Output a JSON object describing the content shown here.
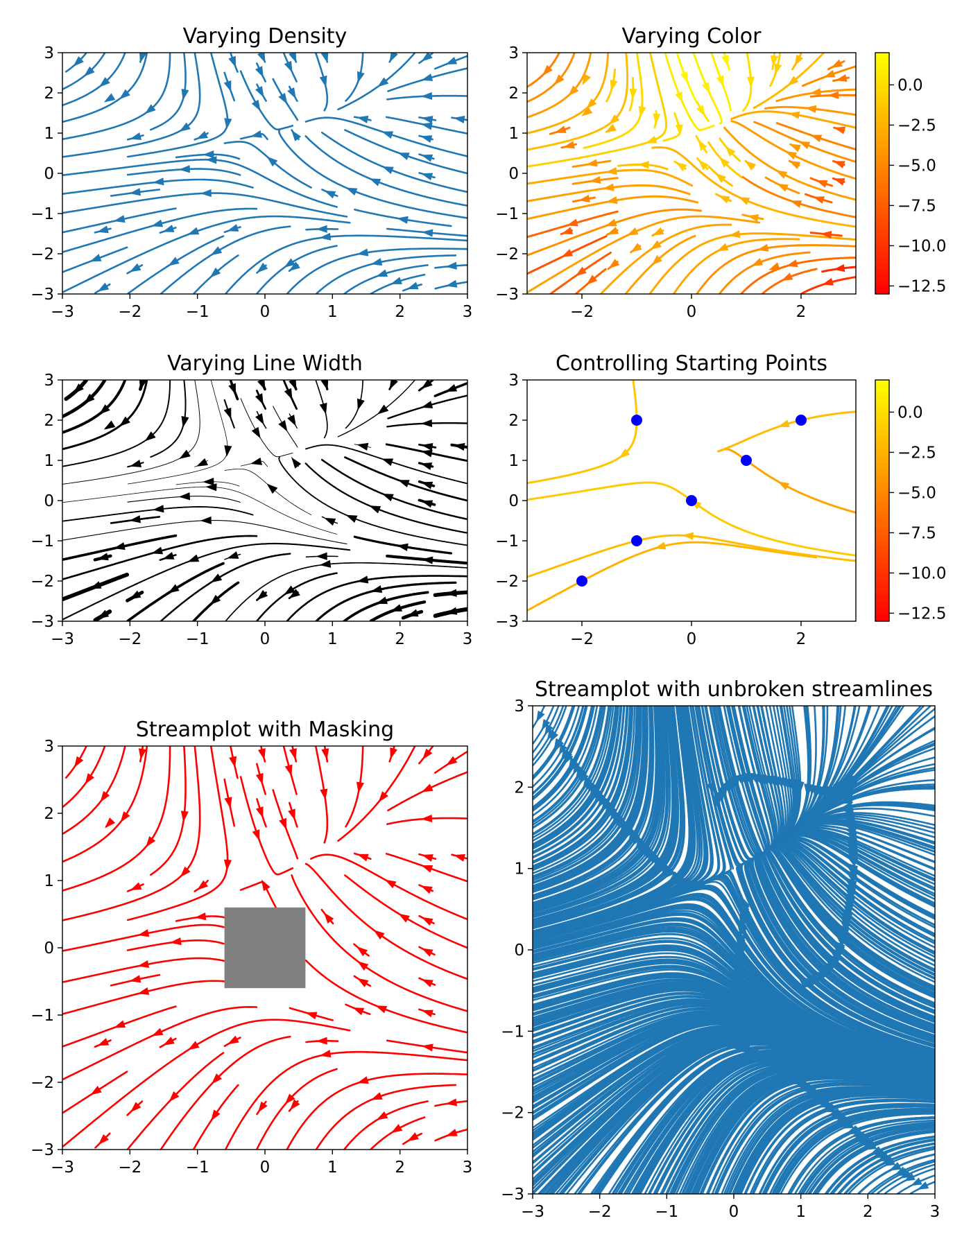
{
  "chart_data": [
    {
      "type": "streamplot",
      "title": "Varying Density",
      "xlim": [
        -3,
        3
      ],
      "ylim": [
        -3,
        3
      ],
      "xticks": [
        -3,
        -2,
        -1,
        0,
        1,
        2,
        3
      ],
      "yticks": [
        -3,
        -2,
        -1,
        0,
        1,
        2,
        3
      ],
      "field": {
        "U": "-1 - X^2 + Y",
        "V": "1 + X - Y^2"
      },
      "density": 1.4,
      "color": "#1f77b4",
      "colorbar": false
    },
    {
      "type": "streamplot",
      "title": "Varying Color",
      "xlim": [
        -3,
        3
      ],
      "ylim": [
        -3,
        3
      ],
      "xticks": [
        -2,
        0,
        2
      ],
      "yticks": [
        -3,
        -2,
        -1,
        0,
        1,
        2,
        3
      ],
      "field": {
        "U": "-1 - X^2 + Y",
        "V": "1 + X - Y^2"
      },
      "density": 1.6,
      "colormap": "autumn",
      "color_by": "U",
      "colorbar": true,
      "colorbar_range": [
        -13,
        2
      ],
      "colorbar_ticks": [
        0.0,
        -2.5,
        -5.0,
        -7.5,
        -10.0,
        -12.5
      ],
      "colorbar_tick_labels": [
        "0.0",
        "−2.5",
        "−5.0",
        "−7.5",
        "−10.0",
        "−12.5"
      ]
    },
    {
      "type": "streamplot",
      "title": "Varying Line Width",
      "xlim": [
        -3,
        3
      ],
      "ylim": [
        -3,
        3
      ],
      "xticks": [
        -3,
        -2,
        -1,
        0,
        1,
        2,
        3
      ],
      "yticks": [
        -3,
        -2,
        -1,
        0,
        1,
        2,
        3
      ],
      "field": {
        "U": "-1 - X^2 + Y",
        "V": "1 + X - Y^2"
      },
      "density": 1.4,
      "color": "#000000",
      "linewidth_by": "speed",
      "colorbar": false
    },
    {
      "type": "streamplot",
      "title": "Controlling Starting Points",
      "xlim": [
        -3,
        3
      ],
      "ylim": [
        -3,
        3
      ],
      "xticks": [
        -2,
        0,
        2
      ],
      "yticks": [
        -3,
        -2,
        -1,
        0,
        1,
        2,
        3
      ],
      "field": {
        "U": "-1 - X^2 + Y",
        "V": "1 + X - Y^2"
      },
      "colormap": "autumn",
      "color_by": "U",
      "start_points": [
        [
          -2,
          -2
        ],
        [
          -1,
          -1
        ],
        [
          0,
          0
        ],
        [
          1,
          1
        ],
        [
          2,
          2
        ],
        [
          -1,
          2
        ]
      ],
      "start_point_color": "#0000ff",
      "colorbar": true,
      "colorbar_range": [
        -13,
        2
      ],
      "colorbar_ticks": [
        0.0,
        -2.5,
        -5.0,
        -7.5,
        -10.0,
        -12.5
      ],
      "colorbar_tick_labels": [
        "0.0",
        "−2.5",
        "−5.0",
        "−7.5",
        "−10.0",
        "−12.5"
      ]
    },
    {
      "type": "streamplot",
      "title": "Streamplot with Masking",
      "xlim": [
        -3,
        3
      ],
      "ylim": [
        -3,
        3
      ],
      "xticks": [
        -3,
        -2,
        -1,
        0,
        1,
        2,
        3
      ],
      "yticks": [
        -3,
        -2,
        -1,
        0,
        1,
        2,
        3
      ],
      "field": {
        "U": "-1 - X^2 + Y",
        "V": "1 + X - Y^2"
      },
      "density": 1.4,
      "color": "#ff0000",
      "mask": {
        "x": [
          -0.6,
          0.6
        ],
        "y": [
          -0.6,
          0.6
        ],
        "color": "#808080"
      },
      "colorbar": false
    },
    {
      "type": "streamplot",
      "title": "Streamplot with unbroken streamlines",
      "xlim": [
        -3,
        3
      ],
      "ylim": [
        -3,
        3
      ],
      "xticks": [
        -3,
        -2,
        -1,
        0,
        1,
        2,
        3
      ],
      "yticks": [
        -3,
        -2,
        -1,
        0,
        1,
        2,
        3
      ],
      "field": {
        "U": "-1 - X^2 + Y",
        "V": "1 + X - Y^2"
      },
      "density": 3.0,
      "color": "#1f77b4",
      "broken_streamlines": false,
      "colorbar": false
    }
  ]
}
